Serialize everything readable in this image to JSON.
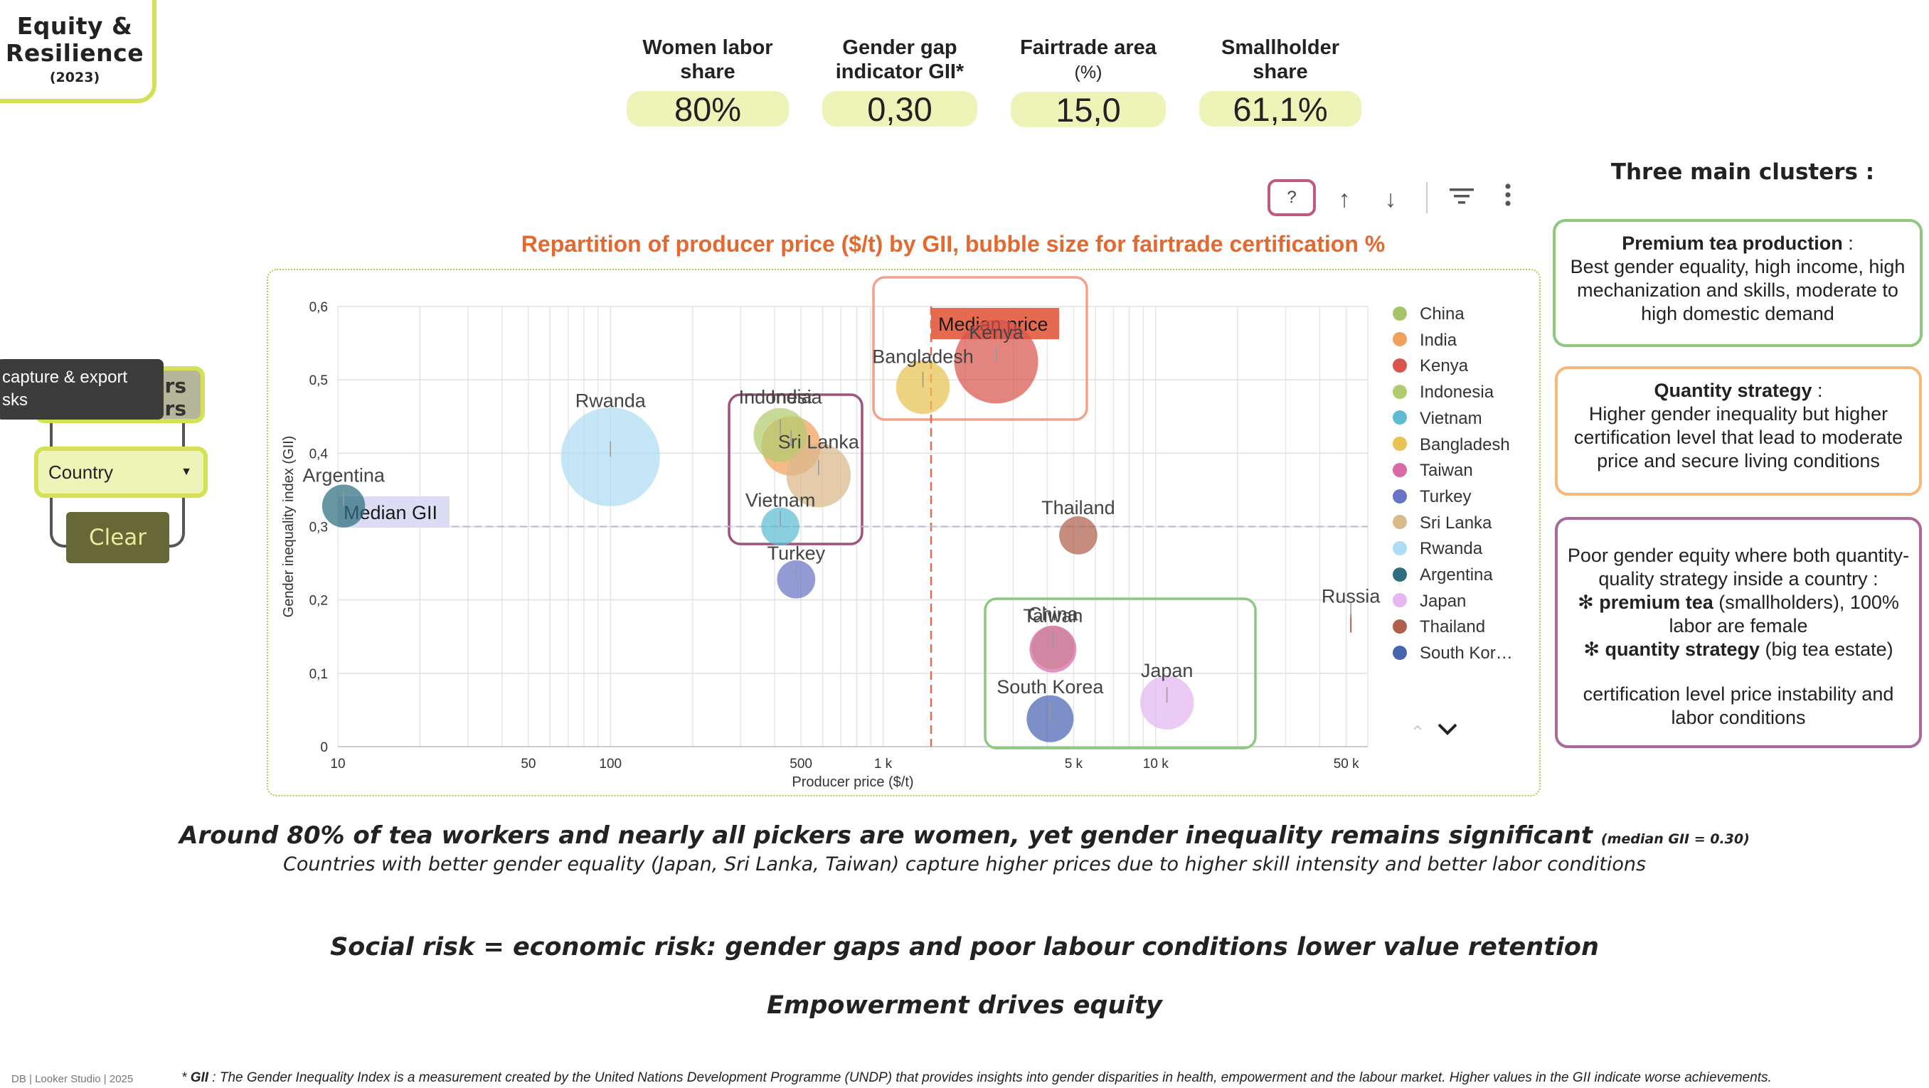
{
  "header": {
    "title": "Equity & Resilience",
    "year": "(2023)"
  },
  "kpis": [
    {
      "label": "Women labor share",
      "unit": "",
      "value": "80%"
    },
    {
      "label": "Gender gap indicator GII*",
      "unit": "",
      "value": "0,30"
    },
    {
      "label": "Fairtrade area",
      "unit": "(%)",
      "value": "15,0"
    },
    {
      "label": "Smallholder share",
      "unit": "",
      "value": "61,1%"
    }
  ],
  "toolbar": {
    "help_label": "?",
    "icons": [
      "arrow-up-icon",
      "arrow-down-icon",
      "filter-icon",
      "more-vert-icon"
    ]
  },
  "left_controls": {
    "producers_chip": "cers\nrs",
    "tooltip": "capture & export\nsks",
    "country_label": "Country",
    "clear_label": "Clear"
  },
  "chart_data": {
    "type": "scatter",
    "title": "Repartition of producer price ($/t) by GII, bubble size for fairtrade certification %",
    "xlabel": "Producer price ($/t)",
    "ylabel": "Gender inequality index (GII)",
    "x_scale": "log",
    "xlim": [
      10,
      60000
    ],
    "ylim": [
      0,
      0.6
    ],
    "x_ticks": [
      {
        "v": 10,
        "label": "10"
      },
      {
        "v": 50,
        "label": "50"
      },
      {
        "v": 100,
        "label": "100"
      },
      {
        "v": 500,
        "label": "500"
      },
      {
        "v": 1000,
        "label": "1 k"
      },
      {
        "v": 5000,
        "label": "5 k"
      },
      {
        "v": 10000,
        "label": "10 k"
      },
      {
        "v": 50000,
        "label": "50 k"
      }
    ],
    "y_ticks": [
      {
        "v": 0,
        "label": "0"
      },
      {
        "v": 0.1,
        "label": "0,1"
      },
      {
        "v": 0.2,
        "label": "0,2"
      },
      {
        "v": 0.3,
        "label": "0,3"
      },
      {
        "v": 0.4,
        "label": "0,4"
      },
      {
        "v": 0.5,
        "label": "0,5"
      },
      {
        "v": 0.6,
        "label": "0,6"
      }
    ],
    "grid": true,
    "legend_position": "right",
    "reference_lines": [
      {
        "label": "Median price",
        "axis": "x",
        "value": 1500,
        "color": "#e66a50"
      },
      {
        "label": "Median GII",
        "axis": "y",
        "value": 0.3,
        "color": "#b8b4e0"
      }
    ],
    "series": [
      {
        "name": "China",
        "color": "#a6c46a",
        "x": 4200,
        "y": 0.135,
        "size": 3
      },
      {
        "name": "India",
        "color": "#f0a05a",
        "x": 460,
        "y": 0.41,
        "size": 8
      },
      {
        "name": "Kenya",
        "color": "#d9544d",
        "x": 2600,
        "y": 0.525,
        "size": 20
      },
      {
        "name": "Indonesia",
        "color": "#b1cc6e",
        "x": 420,
        "y": 0.425,
        "size": 6
      },
      {
        "name": "Vietnam",
        "color": "#5dbcd2",
        "x": 420,
        "y": 0.3,
        "size": 2
      },
      {
        "name": "Bangladesh",
        "color": "#e8c252",
        "x": 1400,
        "y": 0.49,
        "size": 6
      },
      {
        "name": "Taiwan",
        "color": "#d86aa6",
        "x": 4200,
        "y": 0.133,
        "size": 4
      },
      {
        "name": "Turkey",
        "color": "#6a74c4",
        "x": 480,
        "y": 0.228,
        "size": 2
      },
      {
        "name": "Sri Lanka",
        "color": "#d9b98a",
        "x": 580,
        "y": 0.37,
        "size": 10
      },
      {
        "name": "Rwanda",
        "color": "#aedcf4",
        "x": 100,
        "y": 0.395,
        "size": 30
      },
      {
        "name": "Argentina",
        "color": "#2e6e7e",
        "x": 10.5,
        "y": 0.328,
        "size": 3
      },
      {
        "name": "Japan",
        "color": "#e4b6f2",
        "x": 11000,
        "y": 0.06,
        "size": 6
      },
      {
        "name": "Thailand",
        "color": "#b05f4c",
        "x": 5200,
        "y": 0.288,
        "size": 2
      },
      {
        "name": "Russia",
        "color": "#b05f4c",
        "x": 52000,
        "y": 0.175,
        "size": 0
      },
      {
        "name": "South Korea",
        "color": "#4a64b0",
        "x": 4100,
        "y": 0.038,
        "size": 4
      }
    ],
    "legend_entries": [
      {
        "name": "China",
        "color": "#a6c46a"
      },
      {
        "name": "India",
        "color": "#f0a05a"
      },
      {
        "name": "Kenya",
        "color": "#d9544d"
      },
      {
        "name": "Indonesia",
        "color": "#b1cc6e"
      },
      {
        "name": "Vietnam",
        "color": "#5dbcd2"
      },
      {
        "name": "Bangladesh",
        "color": "#e8c252"
      },
      {
        "name": "Taiwan",
        "color": "#d86aa6"
      },
      {
        "name": "Turkey",
        "color": "#6a74c4"
      },
      {
        "name": "Sri Lanka",
        "color": "#d9b98a"
      },
      {
        "name": "Rwanda",
        "color": "#aedcf4"
      },
      {
        "name": "Argentina",
        "color": "#2e6e7e"
      },
      {
        "name": "Japan",
        "color": "#e4b6f2"
      },
      {
        "name": "Thailand",
        "color": "#b05f4c"
      },
      {
        "name": "South Kor…",
        "color": "#4a64b0"
      }
    ]
  },
  "clusters": {
    "title": "Three main clusters :",
    "premium": {
      "heading": "Premium tea production",
      "suffix": " :",
      "body": "Best gender equality, high income, high mechanization and skills, moderate to high domestic demand",
      "color": "#8cc97f"
    },
    "quantity": {
      "heading": "Quantity strategy",
      "suffix": " :",
      "body": "Higher gender inequality but higher certification level that lead to moderate price and secure living conditions",
      "color": "#f7b878"
    },
    "mixed": {
      "intro": "Poor gender equity where both quantity-quality strategy inside a country :",
      "b1_bold": "premium tea",
      "b1_rest": " (smallholders), 100% labor are female",
      "b2_bold": "quantity strategy",
      "b2_rest": " (big tea estate)",
      "outro": "certification level price instability and labor conditions",
      "color": "#a86a9a"
    }
  },
  "narrative": {
    "line1": "Around 80% of tea workers and nearly all pickers are women, yet gender inequality remains significant",
    "line1_small": "(median GII = 0.30)",
    "line2": "Countries with better gender equality (Japan, Sri Lanka, Taiwan) capture higher prices due to higher skill intensity and better labor conditions",
    "line3": "Social risk = economic risk:  gender gaps and poor labour conditions lower value retention",
    "line4": "Empowerment drives equity"
  },
  "footer": {
    "left": "DB  | Looker Studio | 2025",
    "note_prefix": "* ",
    "note_bold": "GII",
    "note_rest": " : The Gender Inequality Index is a measurement created by the United Nations Development Programme (UNDP) that provides insights into gender disparities in health, empowerment and the labour market. Higher values in the GII indicate worse achievements."
  }
}
